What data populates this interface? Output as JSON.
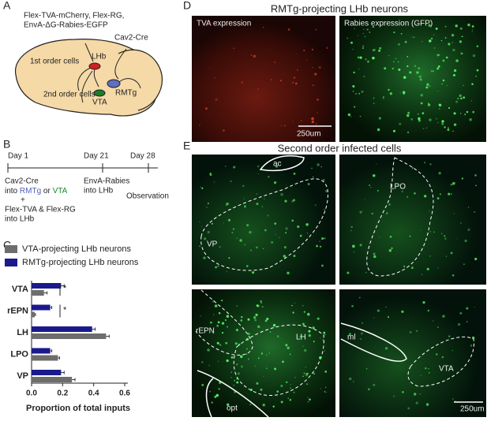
{
  "panel_labels": [
    "A",
    "B",
    "C",
    "D",
    "E"
  ],
  "panel_a": {
    "constructs": [
      "Flex-TVA-mCherry, Flex-RG,",
      "EnvA-ΔG-Rabies-EGFP"
    ],
    "cre": "Cav2-Cre",
    "first_order": "1st order cells",
    "lhb": "LHb",
    "rmtg": "RMTg",
    "second_order": "2nd order cells",
    "vta": "VTA"
  },
  "panel_b": {
    "days": [
      "Day 1",
      "Day 21",
      "Day 28"
    ],
    "step1": [
      "Cav2-Cre",
      "into ",
      "RMTg",
      " or ",
      "VTA"
    ],
    "plus": "+",
    "step1b": [
      "Flex-TVA & Flex-RG",
      "into LHb"
    ],
    "step2": [
      "EnvA-Rabies",
      "into LHb"
    ],
    "step3": "Observation"
  },
  "panel_d": {
    "title": "RMTg-projecting LHb neurons",
    "left": "TVA expression",
    "right": "Rabies expression (GFP)",
    "scale": "250um"
  },
  "panel_e": {
    "title": "Second order infected cells",
    "labels": [
      "ac",
      "LPO",
      "VP",
      "rEPN",
      "LH",
      "ml",
      "VTA",
      "opt"
    ],
    "scale": "250um"
  },
  "chart_data": {
    "type": "hbar",
    "x_label": "Proportion of total inputs",
    "categories": [
      "VTA",
      "rEPN",
      "LH",
      "LPO",
      "VP"
    ],
    "series": [
      {
        "name": "VTA-projecting LHb neurons",
        "color": "#6d6d6d",
        "values": [
          0.08,
          0.02,
          0.48,
          0.17,
          0.26
        ],
        "errors": [
          0.02,
          0.005,
          0.02,
          0.01,
          0.02
        ]
      },
      {
        "name": "RMTg-projecting LHb neurons",
        "color": "#1a1a8c",
        "values": [
          0.19,
          0.12,
          0.39,
          0.12,
          0.19
        ],
        "errors": [
          0.02,
          0.01,
          0.02,
          0.01,
          0.02
        ]
      }
    ],
    "xlim": [
      0,
      0.6
    ],
    "xticks": [
      {
        "value": 0,
        "label": "0.0"
      },
      0.2,
      0.4,
      0.6
    ],
    "annotations": [
      "*",
      "*"
    ]
  }
}
